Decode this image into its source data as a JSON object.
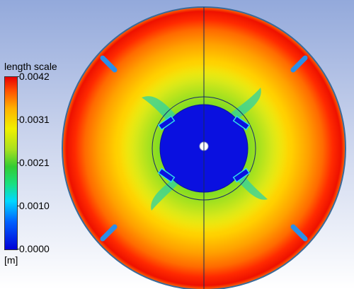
{
  "chart_data": {
    "type": "heatmap",
    "colorbar": {
      "title": "length scale",
      "unit": "[m]",
      "tick_labels": [
        "0.0042",
        "0.0031",
        "0.0021",
        "0.0010",
        "0.0000"
      ],
      "range": [
        0.0,
        0.0042
      ],
      "placement": "left"
    },
    "colors": {
      "min": "#0000d8",
      "low": "#00d8ff",
      "mid": "#33cc33",
      "high": "#f0f000",
      "max": "#e80000"
    }
  }
}
